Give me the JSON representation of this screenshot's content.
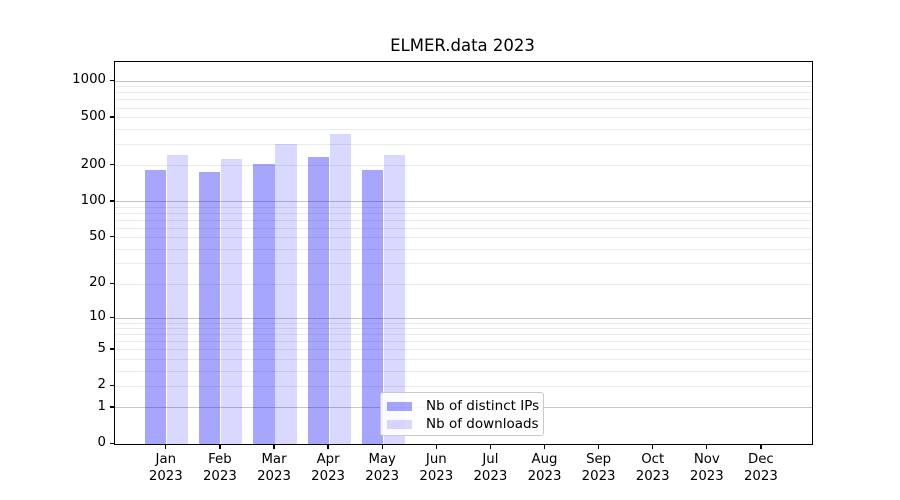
{
  "chart_data": {
    "type": "bar",
    "title": "ELMER.data 2023",
    "yscale": "log1p",
    "grid": "major+minor",
    "legend_position": "lower center",
    "yticks": [
      0,
      1,
      2,
      5,
      10,
      20,
      50,
      100,
      200,
      500,
      1000
    ],
    "ylim": [
      0,
      1450
    ],
    "categories": [
      "Jan 2023",
      "Feb 2023",
      "Mar 2023",
      "Apr 2023",
      "May 2023",
      "Jun 2023",
      "Jul 2023",
      "Aug 2023",
      "Sep 2023",
      "Oct 2023",
      "Nov 2023",
      "Dec 2023"
    ],
    "series": [
      {
        "name": "Nb of distinct IPs",
        "color": "rgba(0,0,255,0.35)",
        "values": [
          182,
          174,
          206,
          234,
          181,
          0,
          0,
          0,
          0,
          0,
          0,
          0
        ]
      },
      {
        "name": "Nb of downloads",
        "color": "rgba(0,0,255,0.15)",
        "values": [
          242,
          225,
          298,
          359,
          242,
          0,
          0,
          0,
          0,
          0,
          0,
          0
        ]
      }
    ]
  },
  "colors": {
    "major_gridline": "#c6c6c6",
    "minor_gridline": "#ebebeb",
    "axis": "#000000",
    "bar_distinct_ips": "rgba(0,0,255,0.35)",
    "bar_downloads": "rgba(0,0,255,0.15)"
  }
}
